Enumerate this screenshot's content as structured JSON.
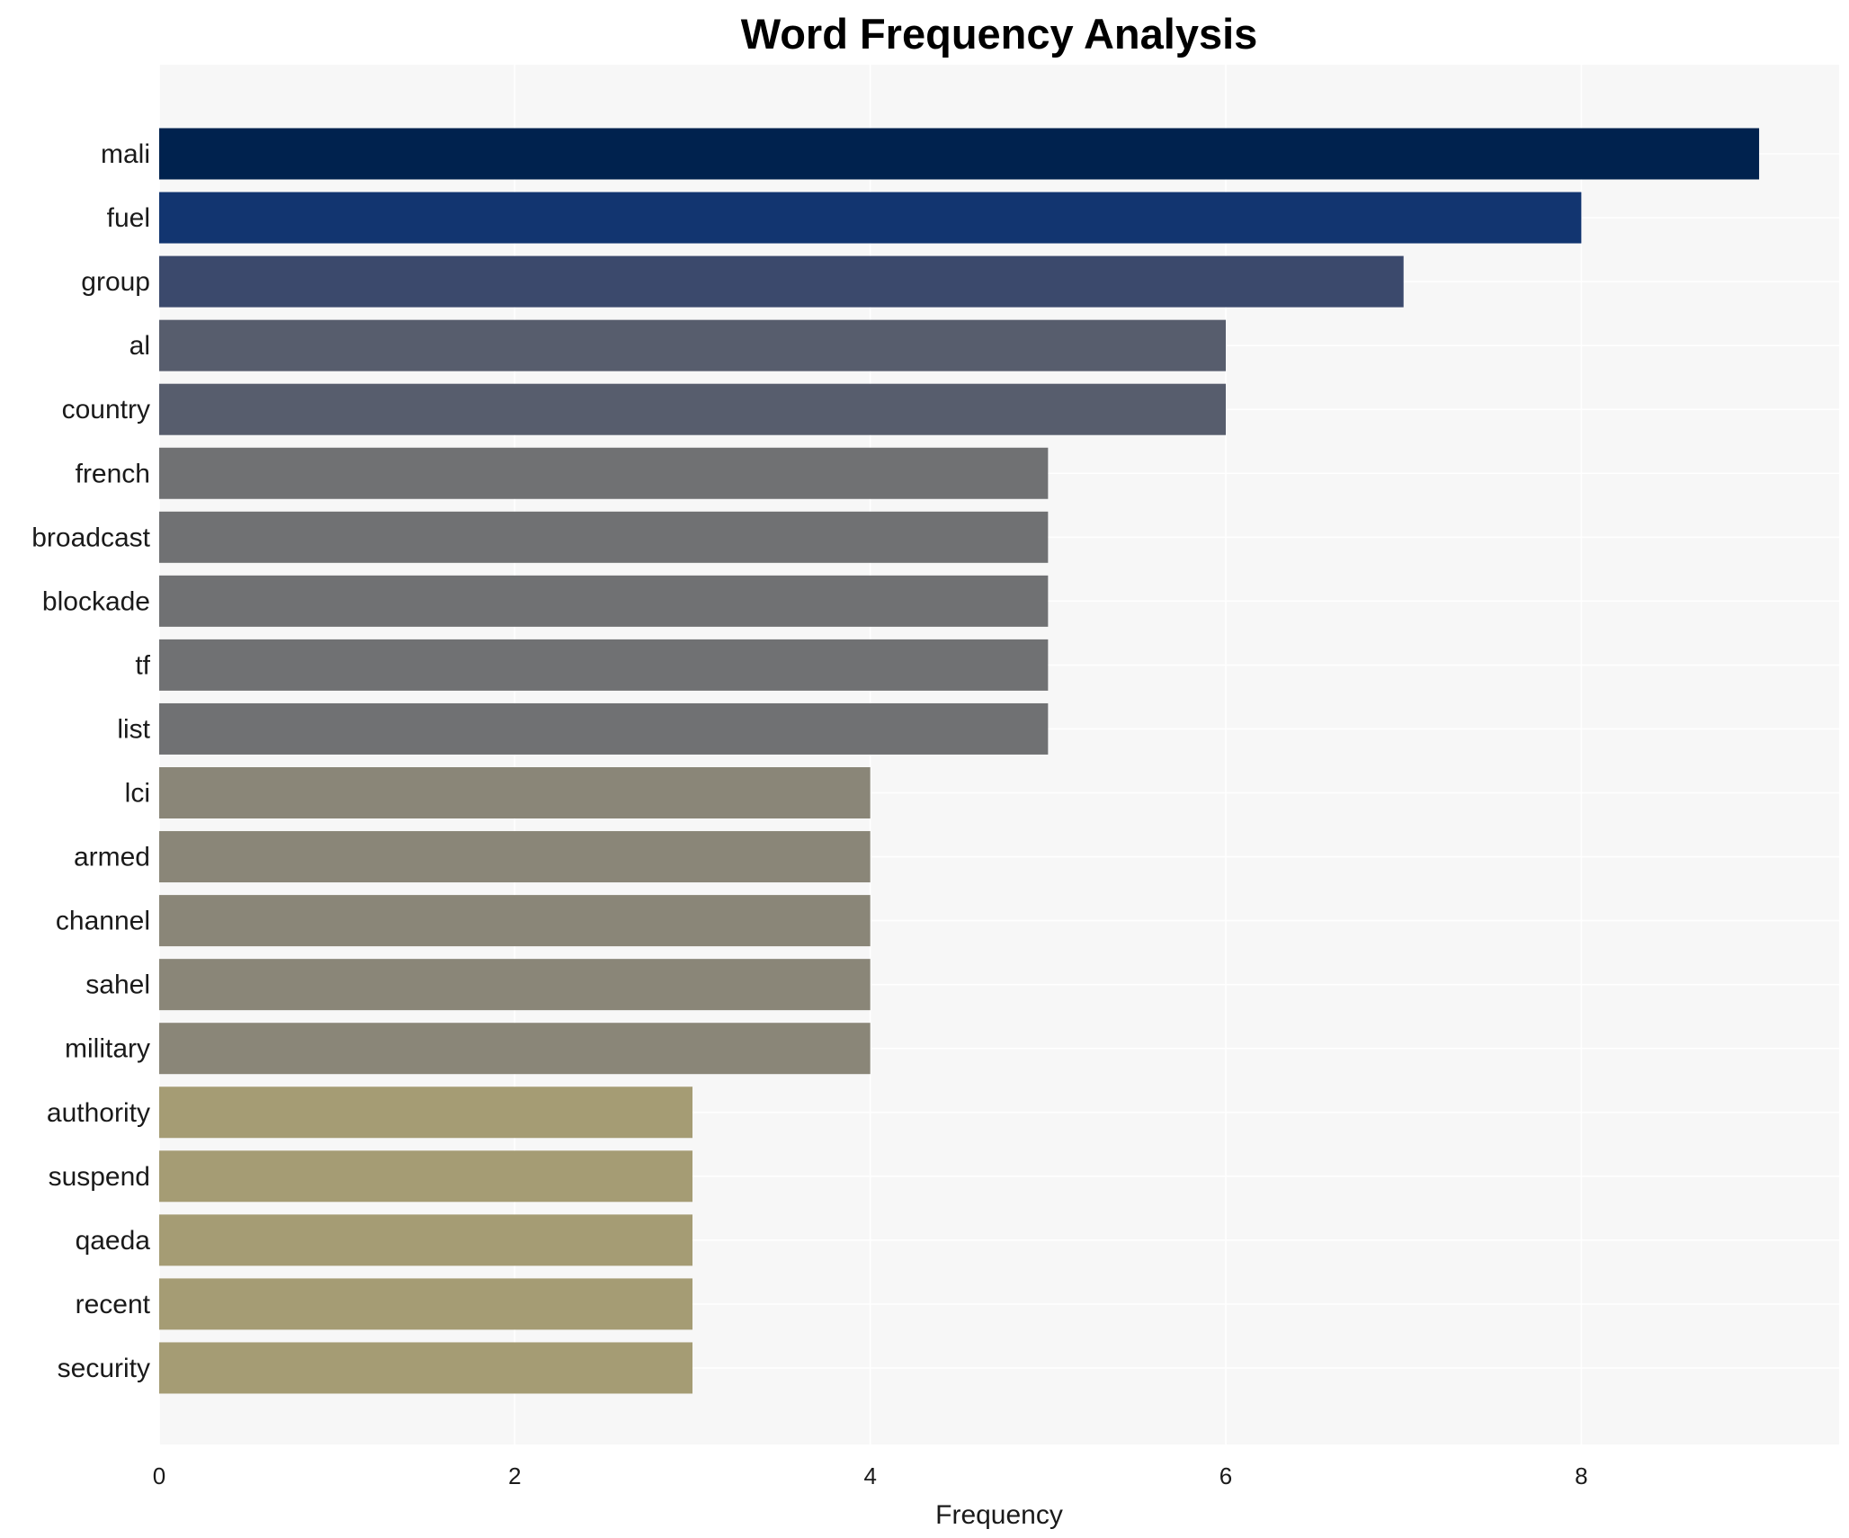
{
  "chart_data": {
    "type": "bar",
    "orientation": "horizontal",
    "title": "Word Frequency Analysis",
    "xlabel": "Frequency",
    "ylabel": "",
    "xlim": [
      0,
      9.45
    ],
    "xticks": [
      0,
      2,
      4,
      6,
      8
    ],
    "grid": true,
    "categories": [
      "mali",
      "fuel",
      "group",
      "al",
      "country",
      "french",
      "broadcast",
      "blockade",
      "tf",
      "list",
      "lci",
      "armed",
      "channel",
      "sahel",
      "military",
      "authority",
      "suspend",
      "qaeda",
      "recent",
      "security"
    ],
    "values": [
      9,
      8,
      7,
      6,
      6,
      5,
      5,
      5,
      5,
      5,
      4,
      4,
      4,
      4,
      4,
      3,
      3,
      3,
      3,
      3
    ],
    "colors": [
      "#00224e",
      "#123570",
      "#3b496c",
      "#575d6d",
      "#575d6d",
      "#707173",
      "#707173",
      "#707173",
      "#707173",
      "#707173",
      "#8a8678",
      "#8a8678",
      "#8a8678",
      "#8a8678",
      "#8a8678",
      "#a59c74",
      "#a59c74",
      "#a59c74",
      "#a59c74",
      "#a59c74"
    ],
    "background": "#f7f7f7"
  }
}
